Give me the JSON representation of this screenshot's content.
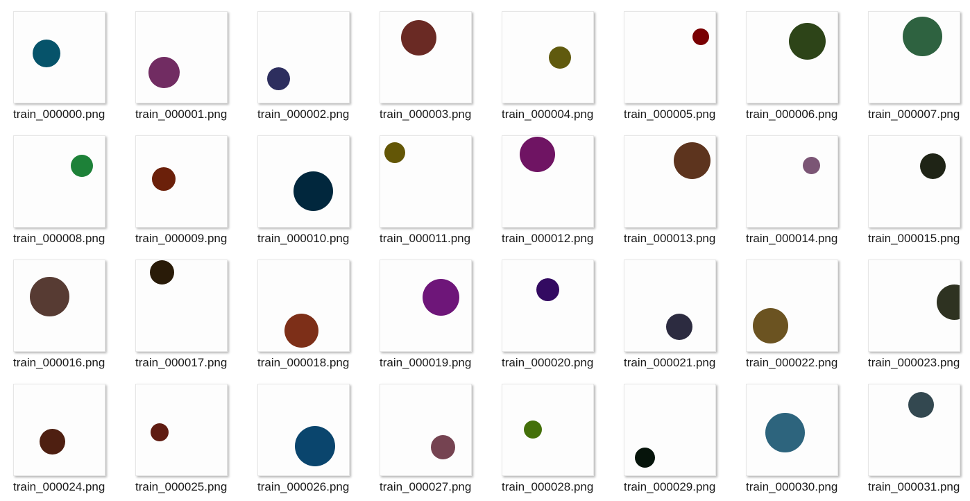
{
  "files": [
    {
      "name": "train_000000.png",
      "circle_color": "#06536a"
    },
    {
      "name": "train_000001.png",
      "circle_color": "#712c62"
    },
    {
      "name": "train_000002.png",
      "circle_color": "#2d2e5e"
    },
    {
      "name": "train_000003.png",
      "circle_color": "#6a2a24"
    },
    {
      "name": "train_000004.png",
      "circle_color": "#605a0e"
    },
    {
      "name": "train_000005.png",
      "circle_color": "#790002"
    },
    {
      "name": "train_000006.png",
      "circle_color": "#2d4418"
    },
    {
      "name": "train_000007.png",
      "circle_color": "#2e6240"
    },
    {
      "name": "train_000008.png",
      "circle_color": "#1d8138"
    },
    {
      "name": "train_000009.png",
      "circle_color": "#6b200a"
    },
    {
      "name": "train_000010.png",
      "circle_color": "#01273d"
    },
    {
      "name": "train_000011.png",
      "circle_color": "#635606"
    },
    {
      "name": "train_000012.png",
      "circle_color": "#6f1463"
    },
    {
      "name": "train_000013.png",
      "circle_color": "#5d341e"
    },
    {
      "name": "train_000014.png",
      "circle_color": "#7b5575"
    },
    {
      "name": "train_000015.png",
      "circle_color": "#1f2416"
    },
    {
      "name": "train_000016.png",
      "circle_color": "#573b33"
    },
    {
      "name": "train_000017.png",
      "circle_color": "#291b08"
    },
    {
      "name": "train_000018.png",
      "circle_color": "#7d2f18"
    },
    {
      "name": "train_000019.png",
      "circle_color": "#6e1679"
    },
    {
      "name": "train_000020.png",
      "circle_color": "#330a61"
    },
    {
      "name": "train_000021.png",
      "circle_color": "#2c2b40"
    },
    {
      "name": "train_000022.png",
      "circle_color": "#6b5321"
    },
    {
      "name": "train_000023.png",
      "circle_color": "#2e3221"
    },
    {
      "name": "train_000024.png",
      "circle_color": "#4e1f11"
    },
    {
      "name": "train_000025.png",
      "circle_color": "#5f1c12"
    },
    {
      "name": "train_000026.png",
      "circle_color": "#0a456d"
    },
    {
      "name": "train_000027.png",
      "circle_color": "#754351"
    },
    {
      "name": "train_000028.png",
      "circle_color": "#44700a"
    },
    {
      "name": "train_000029.png",
      "circle_color": "#06140b"
    },
    {
      "name": "train_000030.png",
      "circle_color": "#2d647d"
    },
    {
      "name": "train_000031.png",
      "circle_color": "#334850"
    }
  ]
}
